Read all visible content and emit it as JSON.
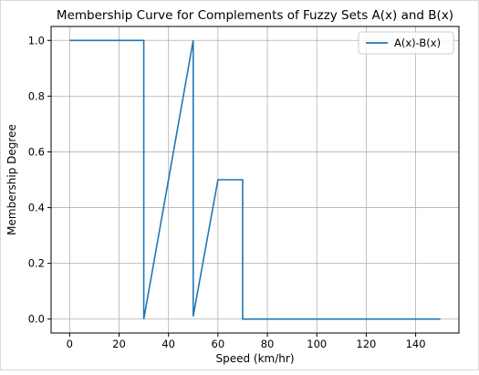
{
  "chart_data": {
    "type": "line",
    "title": "Membership Curve for Complements of Fuzzy Sets A(x) and B(x)",
    "xlabel": "Speed (km/hr)",
    "ylabel": "Membership Degree",
    "xlim": [
      -7.5,
      157.5
    ],
    "ylim": [
      -0.05,
      1.05
    ],
    "xticks": [
      0,
      20,
      40,
      60,
      80,
      100,
      120,
      140
    ],
    "xtick_labels": [
      "0",
      "20",
      "40",
      "60",
      "80",
      "100",
      "120",
      "140"
    ],
    "yticks": [
      0.0,
      0.2,
      0.4,
      0.6,
      0.8,
      1.0
    ],
    "ytick_labels": [
      "0.0",
      "0.2",
      "0.4",
      "0.6",
      "0.8",
      "1.0"
    ],
    "grid": true,
    "legend_position": "upper right",
    "series": [
      {
        "name": "A(x)-B(x)",
        "color": "#1f77b4",
        "x": [
          0,
          30,
          30,
          50,
          50,
          60,
          70,
          70,
          150
        ],
        "y": [
          1.0,
          1.0,
          0.0,
          1.0,
          0.01,
          0.5,
          0.5,
          0.0,
          0.0
        ]
      }
    ]
  }
}
